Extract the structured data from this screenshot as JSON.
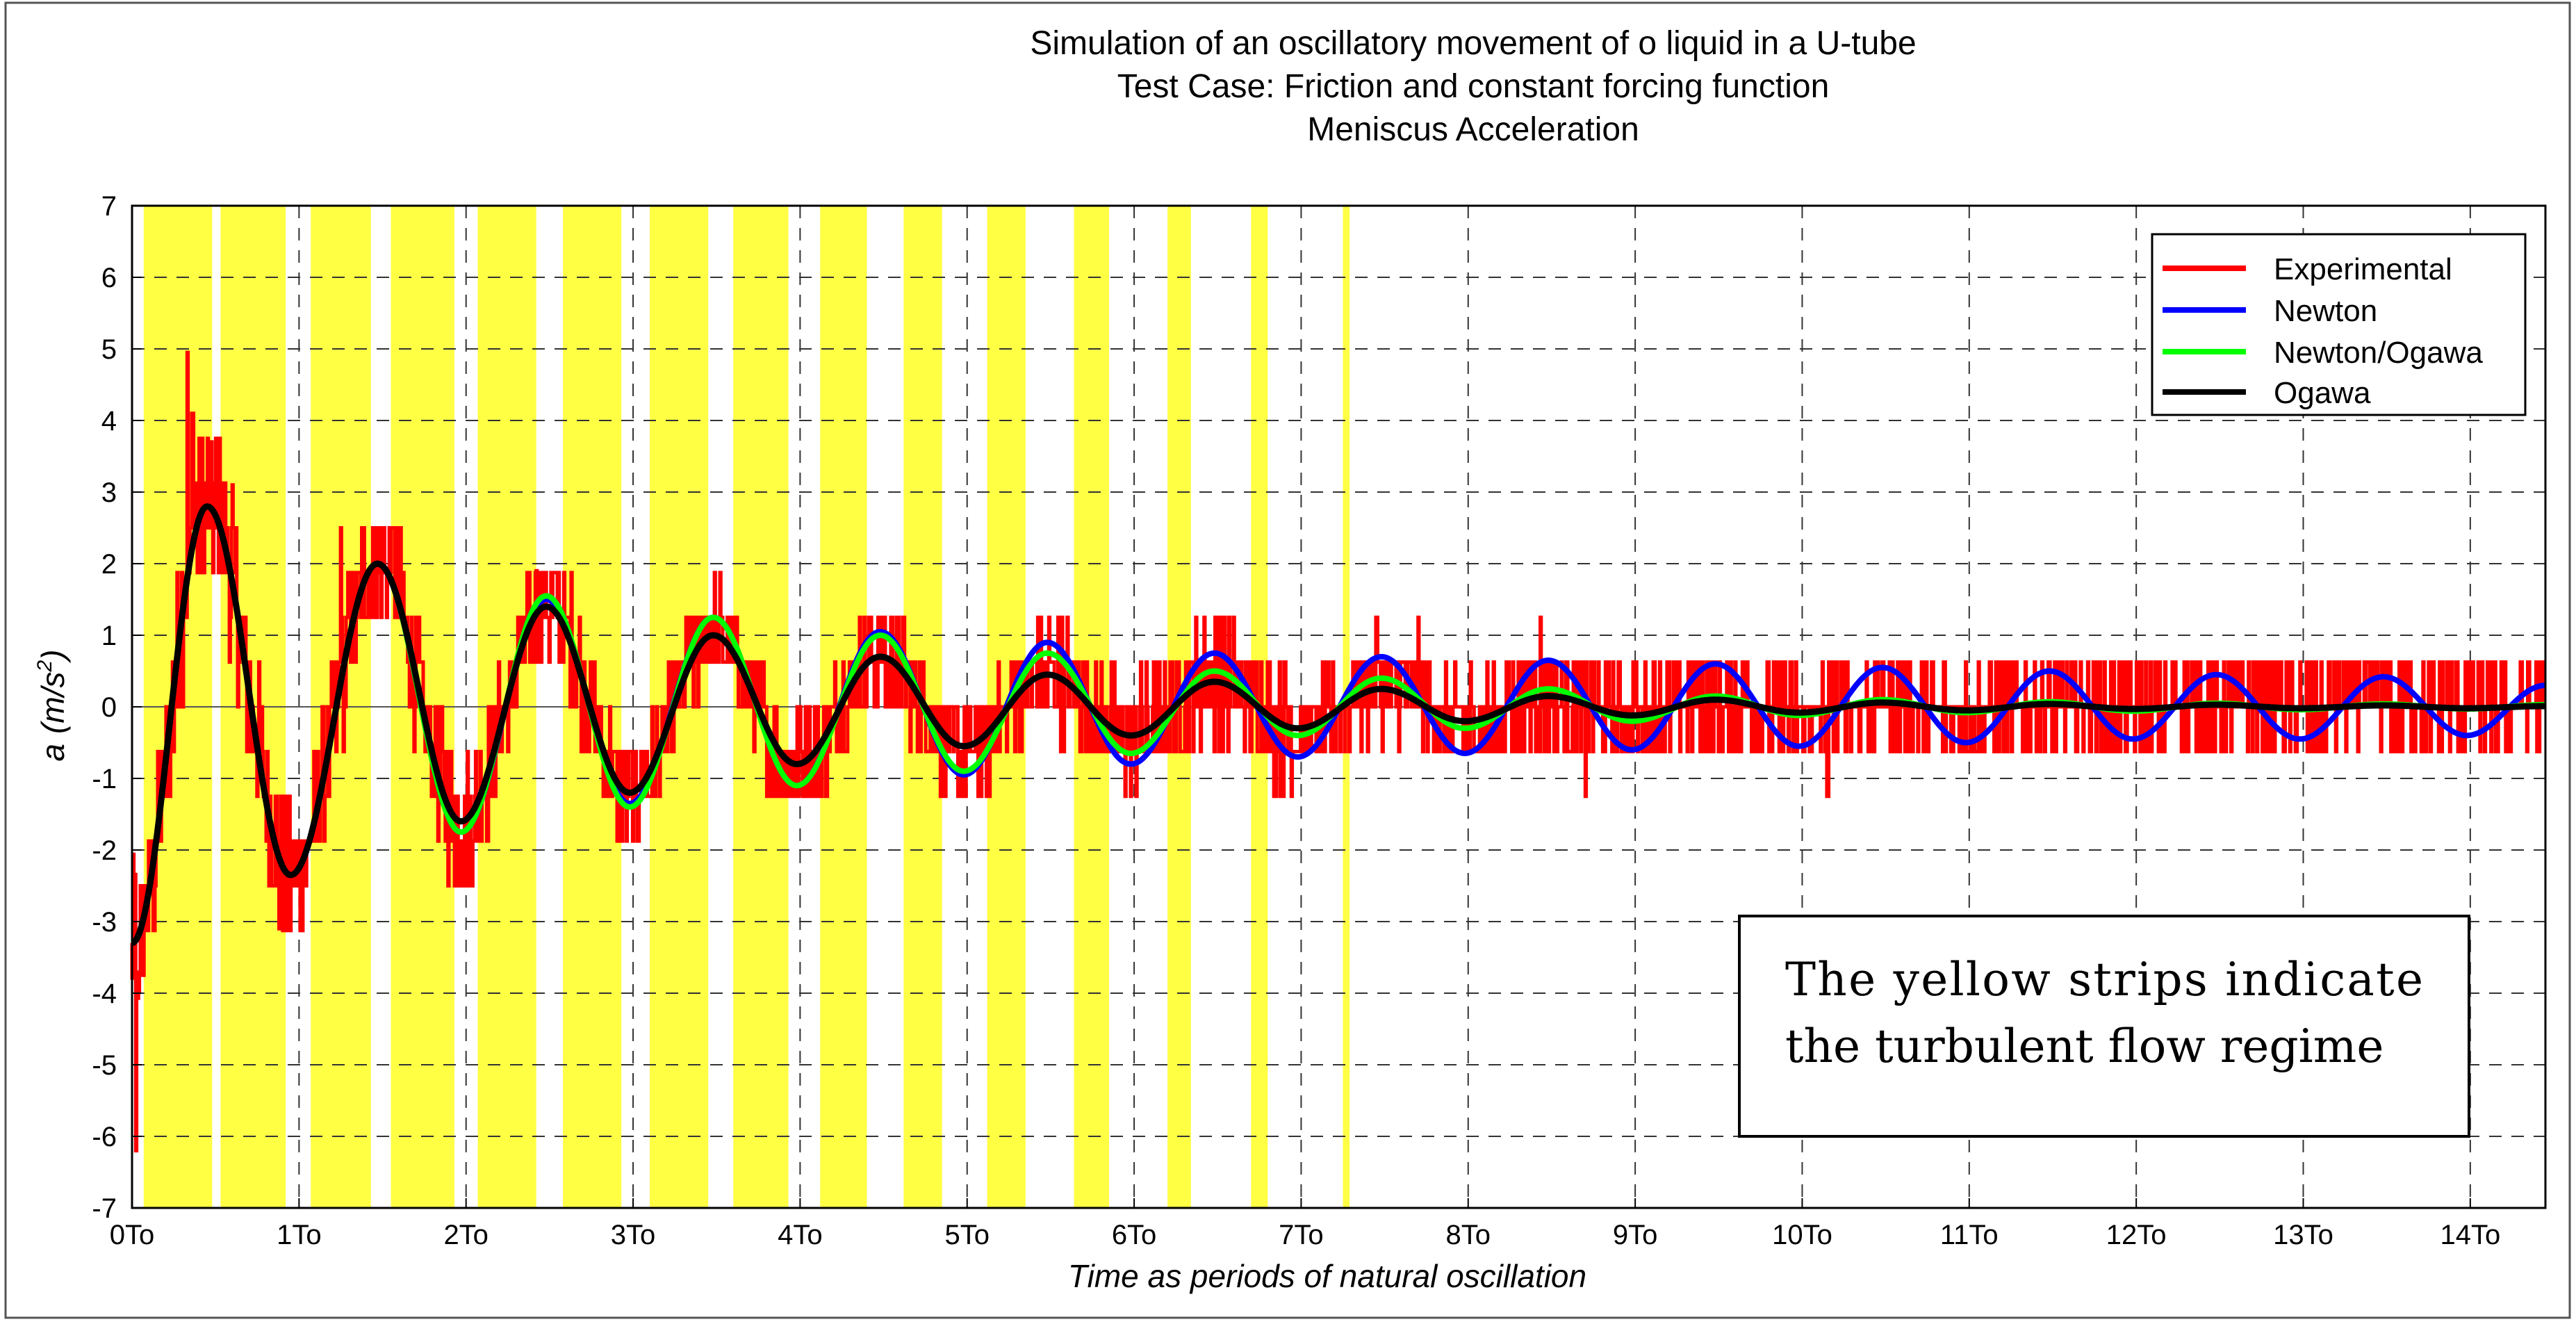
{
  "chart_data": {
    "type": "line",
    "title_lines": [
      "Simulation of an oscillatory movement of o liquid in a U-tube",
      "Test Case: Friction and constant forcing function",
      "Meniscus Acceleration"
    ],
    "xlabel": "Time as periods of natural oscillation",
    "ylabel_main": "a",
    "ylabel_unit": "(m/s",
    "ylabel_sup": "2",
    "ylabel_close": ")",
    "xlim": [
      0,
      14.45
    ],
    "ylim": [
      -7,
      7
    ],
    "x_ticks": [
      {
        "value": 0,
        "label": "0To"
      },
      {
        "value": 1,
        "label": "1To"
      },
      {
        "value": 2,
        "label": "2To"
      },
      {
        "value": 3,
        "label": "3To"
      },
      {
        "value": 4,
        "label": "4To"
      },
      {
        "value": 5,
        "label": "5To"
      },
      {
        "value": 6,
        "label": "6To"
      },
      {
        "value": 7,
        "label": "7To"
      },
      {
        "value": 8,
        "label": "8To"
      },
      {
        "value": 9,
        "label": "9To"
      },
      {
        "value": 10,
        "label": "10To"
      },
      {
        "value": 11,
        "label": "11To"
      },
      {
        "value": 12,
        "label": "12To"
      },
      {
        "value": 13,
        "label": "13To"
      },
      {
        "value": 14,
        "label": "14To"
      }
    ],
    "y_ticks": [
      7,
      6,
      5,
      4,
      3,
      2,
      1,
      0,
      -1,
      -2,
      -3,
      -4,
      -5,
      -6,
      -7
    ],
    "grid": true,
    "legend_position": "top-right",
    "series": [
      {
        "name": "Experimental",
        "color": "#ff0000"
      },
      {
        "name": "Newton",
        "color": "#0000ff"
      },
      {
        "name": "Newton/Ogawa",
        "color": "#00ff00"
      },
      {
        "name": "Ogawa",
        "color": "#000000"
      }
    ],
    "model": {
      "initial_value": -3.3,
      "period_T": 1.0,
      "peaks": [
        {
          "x": 0.45,
          "newton": 2.8,
          "newton_ogawa": 2.8,
          "ogawa": 2.8
        },
        {
          "x": 0.95,
          "newton": -2.35,
          "newton_ogawa": -2.35,
          "ogawa": -2.35
        },
        {
          "x": 1.47,
          "newton": 2.0,
          "newton_ogawa": 2.0,
          "ogawa": 2.0
        },
        {
          "x": 1.97,
          "newton": -1.75,
          "newton_ogawa": -1.75,
          "ogawa": -1.6
        },
        {
          "x": 2.48,
          "newton": 1.5,
          "newton_ogawa": 1.55,
          "ogawa": 1.4
        },
        {
          "x": 2.98,
          "newton": -1.35,
          "newton_ogawa": -1.4,
          "ogawa": -1.2
        },
        {
          "x": 3.48,
          "newton": 1.25,
          "newton_ogawa": 1.25,
          "ogawa": 1.0
        },
        {
          "x": 3.98,
          "newton": -1.1,
          "newton_ogawa": -1.1,
          "ogawa": -0.8
        },
        {
          "x": 4.48,
          "newton": 1.05,
          "newton_ogawa": 1.0,
          "ogawa": 0.7
        },
        {
          "x": 4.98,
          "newton": -0.95,
          "newton_ogawa": -0.9,
          "ogawa": -0.55
        },
        {
          "x": 5.48,
          "newton": 0.9,
          "newton_ogawa": 0.75,
          "ogawa": 0.45
        },
        {
          "x": 5.98,
          "newton": -0.8,
          "newton_ogawa": -0.65,
          "ogawa": -0.4
        },
        {
          "x": 6.48,
          "newton": 0.75,
          "newton_ogawa": 0.5,
          "ogawa": 0.35
        },
        {
          "x": 6.98,
          "newton": -0.7,
          "newton_ogawa": -0.4,
          "ogawa": -0.3
        },
        {
          "x": 7.48,
          "newton": 0.7,
          "newton_ogawa": 0.4,
          "ogawa": 0.25
        },
        {
          "x": 7.98,
          "newton": -0.65,
          "newton_ogawa": -0.3,
          "ogawa": -0.2
        },
        {
          "x": 8.48,
          "newton": 0.65,
          "newton_ogawa": 0.25,
          "ogawa": 0.15
        },
        {
          "x": 8.98,
          "newton": -0.6,
          "newton_ogawa": -0.2,
          "ogawa": -0.12
        },
        {
          "x": 9.48,
          "newton": 0.6,
          "newton_ogawa": 0.15,
          "ogawa": 0.1
        },
        {
          "x": 9.98,
          "newton": -0.55,
          "newton_ogawa": -0.12,
          "ogawa": -0.08
        },
        {
          "x": 10.48,
          "newton": 0.55,
          "newton_ogawa": 0.1,
          "ogawa": 0.06
        },
        {
          "x": 10.98,
          "newton": -0.5,
          "newton_ogawa": -0.08,
          "ogawa": -0.05
        },
        {
          "x": 11.48,
          "newton": 0.5,
          "newton_ogawa": 0.07,
          "ogawa": 0.04
        },
        {
          "x": 11.98,
          "newton": -0.45,
          "newton_ogawa": -0.06,
          "ogawa": -0.03
        },
        {
          "x": 12.48,
          "newton": 0.45,
          "newton_ogawa": 0.05,
          "ogawa": 0.03
        },
        {
          "x": 12.98,
          "newton": -0.45,
          "newton_ogawa": -0.04,
          "ogawa": -0.02
        },
        {
          "x": 13.48,
          "newton": 0.42,
          "newton_ogawa": 0.04,
          "ogawa": 0.02
        },
        {
          "x": 13.98,
          "newton": -0.4,
          "newton_ogawa": -0.03,
          "ogawa": -0.02
        },
        {
          "x": 14.45,
          "newton": 0.3,
          "newton_ogawa": 0.03,
          "ogawa": 0.01
        }
      ],
      "experimental_quantum": 0.625,
      "experimental_noise_by_period": [
        1.1,
        0.9,
        0.8,
        0.7,
        0.75,
        0.75,
        0.8,
        0.6,
        0.65,
        0.6,
        0.55,
        0.55,
        0.55,
        0.55,
        0.55
      ],
      "experimental_spikes": [
        {
          "x": 0.02,
          "y": -6.2
        },
        {
          "x": 0.33,
          "y": 4.95
        },
        {
          "x": 0.36,
          "y": 4.1
        },
        {
          "x": 0.47,
          "y": 3.7
        },
        {
          "x": 0.6,
          "y": 3.1
        },
        {
          "x": 0.88,
          "y": -3.1
        },
        {
          "x": 1.25,
          "y": 2.5
        },
        {
          "x": 1.55,
          "y": 2.5
        },
        {
          "x": 2.42,
          "y": 1.9
        },
        {
          "x": 4.55,
          "y": 1.25
        },
        {
          "x": 6.5,
          "y": 1.25
        },
        {
          "x": 7.45,
          "y": 1.25
        },
        {
          "x": 7.7,
          "y": 1.25
        },
        {
          "x": 8.7,
          "y": -1.25
        },
        {
          "x": 8.43,
          "y": 1.25
        },
        {
          "x": 10.15,
          "y": 1.25
        },
        {
          "x": 10.15,
          "y": -1.25
        }
      ]
    },
    "turbulent_strips": [
      [
        0.07,
        0.48
      ],
      [
        0.53,
        0.92
      ],
      [
        1.07,
        1.43
      ],
      [
        1.55,
        1.93
      ],
      [
        2.07,
        2.42
      ],
      [
        2.58,
        2.93
      ],
      [
        3.1,
        3.45
      ],
      [
        3.6,
        3.93
      ],
      [
        4.12,
        4.4
      ],
      [
        4.62,
        4.85
      ],
      [
        5.12,
        5.35
      ],
      [
        5.64,
        5.85
      ],
      [
        6.2,
        6.34
      ],
      [
        6.7,
        6.8
      ],
      [
        7.25,
        7.29
      ]
    ],
    "turbulent_strip_color": "#ffff44",
    "annotation": {
      "line1": "The yellow strips indicate",
      "line2": "the turbulent flow regime",
      "position": "bottom-right"
    }
  }
}
